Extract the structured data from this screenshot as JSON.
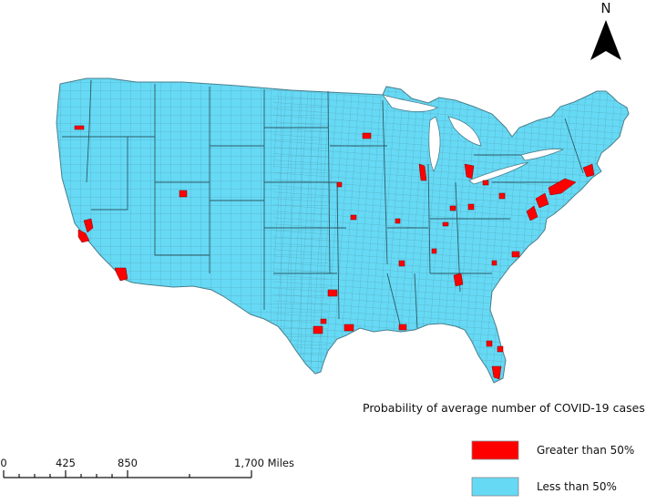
{
  "north_label": "N",
  "legend": {
    "title": "Probability of average number of  COVID-19 cases",
    "items": [
      {
        "label": "Greater than 50%",
        "color": "#ff0000"
      },
      {
        "label": "Less than 50%",
        "color": "#66d9f5"
      }
    ]
  },
  "scale_bar": {
    "ticks": [
      "0",
      "425",
      "850",
      "1,700 Miles"
    ]
  },
  "map": {
    "base_color": "#66d9f5",
    "highlight_color": "#ff0000",
    "boundary_color": "#4a7f8c"
  }
}
